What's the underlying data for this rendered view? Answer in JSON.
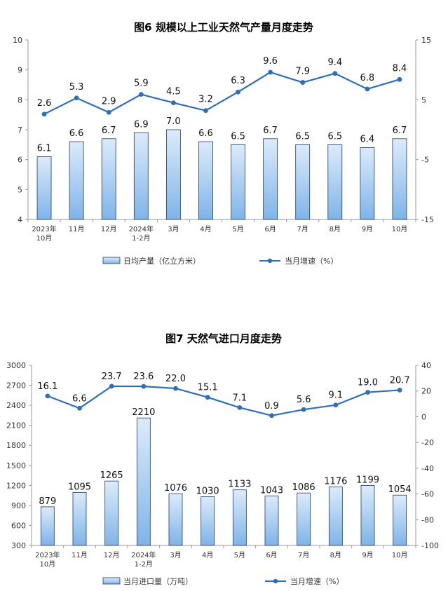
{
  "colors": {
    "bar_fill_top": "#dcebfb",
    "bar_fill_bottom": "#7fb4e8",
    "bar_stroke": "#1f3b63",
    "line": "#2e6fb6",
    "axis": "#999999"
  },
  "chart_data": [
    {
      "type": "bar",
      "title": "图6  规模以上工业天然气产量月度走势",
      "categories": [
        "2023年\n10月",
        "11月",
        "12月",
        "2024年\n1-2月",
        "3月",
        "4月",
        "5月",
        "6月",
        "7月",
        "8月",
        "9月",
        "10月"
      ],
      "series": [
        {
          "name": "日均产量（亿立方米）",
          "kind": "bar",
          "axis": "left",
          "values": [
            6.1,
            6.6,
            6.7,
            6.9,
            7.0,
            6.6,
            6.5,
            6.7,
            6.5,
            6.5,
            6.4,
            6.7
          ]
        },
        {
          "name": "当月增速（%）",
          "kind": "line",
          "axis": "right",
          "values": [
            2.6,
            5.3,
            2.9,
            5.9,
            4.5,
            3.2,
            6.3,
            9.6,
            7.9,
            9.4,
            6.8,
            8.4
          ]
        }
      ],
      "ylim_left": [
        4,
        10
      ],
      "yticks_left": [
        "4",
        "5",
        "6",
        "7",
        "8",
        "9",
        "10"
      ],
      "ylim_right": [
        -15,
        15
      ],
      "yticks_right": [
        "-15",
        "-5",
        "5",
        "15"
      ],
      "bar_labels": [
        "6.1",
        "6.6",
        "6.7",
        "6.9",
        "7.0",
        "6.6",
        "6.5",
        "6.7",
        "6.5",
        "6.5",
        "6.4",
        "6.7"
      ],
      "line_labels": [
        "2.6",
        "5.3",
        "2.9",
        "5.9",
        "4.5",
        "3.2",
        "6.3",
        "9.6",
        "7.9",
        "9.4",
        "6.8",
        "8.4"
      ],
      "legend": [
        "日均产量（亿立方米）",
        "当月增速（%）"
      ]
    },
    {
      "type": "bar",
      "title": "图7  天然气进口月度走势",
      "categories": [
        "2023年\n10月",
        "11月",
        "12月",
        "2024年\n1-2月",
        "3月",
        "4月",
        "5月",
        "6月",
        "7月",
        "8月",
        "9月",
        "10月"
      ],
      "series": [
        {
          "name": "当月进口量（万吨）",
          "kind": "bar",
          "axis": "left",
          "values": [
            879,
            1095,
            1265,
            2210,
            1076,
            1030,
            1133,
            1043,
            1086,
            1176,
            1199,
            1054
          ]
        },
        {
          "name": "当月增速（%）",
          "kind": "line",
          "axis": "right",
          "values": [
            16.1,
            6.6,
            23.7,
            23.6,
            22.0,
            15.1,
            7.1,
            0.9,
            5.6,
            9.1,
            19.0,
            20.7
          ]
        }
      ],
      "ylim_left": [
        300,
        3000
      ],
      "yticks_left": [
        "300",
        "600",
        "900",
        "1200",
        "1500",
        "1800",
        "2100",
        "2400",
        "2700",
        "3000"
      ],
      "ylim_right": [
        -100,
        40
      ],
      "yticks_right": [
        "-100",
        "-80",
        "-60",
        "-40",
        "-20",
        "0",
        "20",
        "40"
      ],
      "bar_labels": [
        "879",
        "1095",
        "1265",
        "2210",
        "1076",
        "1030",
        "1133",
        "1043",
        "1086",
        "1176",
        "1199",
        "1054"
      ],
      "line_labels": [
        "16.1",
        "6.6",
        "23.7",
        "23.6",
        "22.0",
        "15.1",
        "7.1",
        "0.9",
        "5.6",
        "9.1",
        "19.0",
        "20.7"
      ],
      "legend": [
        "当月进口量（万吨）",
        "当月增速（%）"
      ]
    }
  ]
}
